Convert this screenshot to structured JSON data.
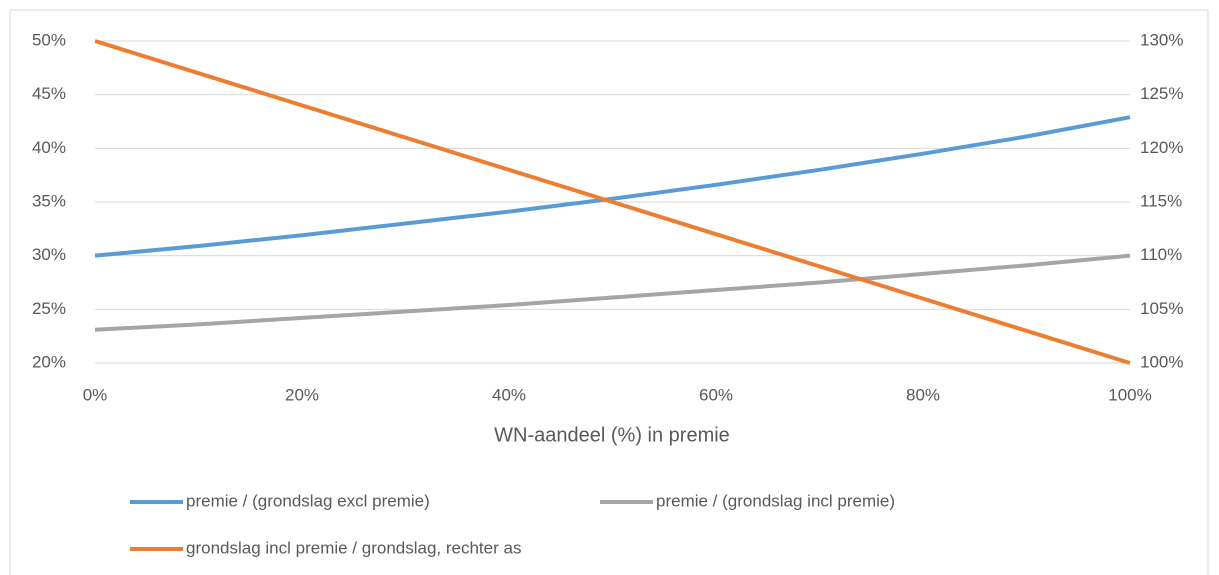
{
  "chart_data": {
    "type": "line",
    "x_label": "WN-aandeel (%) in premie",
    "x": [
      0,
      10,
      20,
      30,
      40,
      50,
      60,
      70,
      80,
      90,
      100
    ],
    "xlim": [
      0,
      100
    ],
    "xticks": [
      {
        "value": 0,
        "label": "0%"
      },
      {
        "value": 20,
        "label": "20%"
      },
      {
        "value": 40,
        "label": "40%"
      },
      {
        "value": 60,
        "label": "60%"
      },
      {
        "value": 80,
        "label": "80%"
      },
      {
        "value": 100,
        "label": "100%"
      }
    ],
    "ylim": [
      20,
      50
    ],
    "yticks": [
      {
        "value": 20,
        "label": "20%"
      },
      {
        "value": 25,
        "label": "25%"
      },
      {
        "value": 30,
        "label": "30%"
      },
      {
        "value": 35,
        "label": "35%"
      },
      {
        "value": 40,
        "label": "40%"
      },
      {
        "value": 45,
        "label": "45%"
      },
      {
        "value": 50,
        "label": "50%"
      }
    ],
    "y2lim": [
      100,
      130
    ],
    "y2ticks": [
      {
        "value": 100,
        "label": "100%"
      },
      {
        "value": 105,
        "label": "105%"
      },
      {
        "value": 110,
        "label": "110%"
      },
      {
        "value": 115,
        "label": "115%"
      },
      {
        "value": 120,
        "label": "120%"
      },
      {
        "value": 125,
        "label": "125%"
      },
      {
        "value": 130,
        "label": "130%"
      }
    ],
    "grid": true,
    "legend": "bottom",
    "series": [
      {
        "name": "premie / (grondslag excl premie)",
        "color": "#5b9bd5",
        "values": [
          30.0,
          30.9,
          31.9,
          33.0,
          34.1,
          35.3,
          36.6,
          38.0,
          39.5,
          41.1,
          42.9
        ]
      },
      {
        "name": "premie / (grondslag incl premie)",
        "color": "#a5a5a5",
        "values": [
          23.1,
          23.6,
          24.2,
          24.8,
          25.4,
          26.1,
          26.8,
          27.5,
          28.3,
          29.1,
          30.0
        ]
      },
      {
        "name": "grondslag incl premie / grondslag, rechter as",
        "color": "#ed7d31",
        "axis": "y2",
        "values": [
          130,
          127,
          124,
          121,
          118,
          115,
          112,
          109,
          106,
          103,
          100
        ]
      }
    ]
  }
}
